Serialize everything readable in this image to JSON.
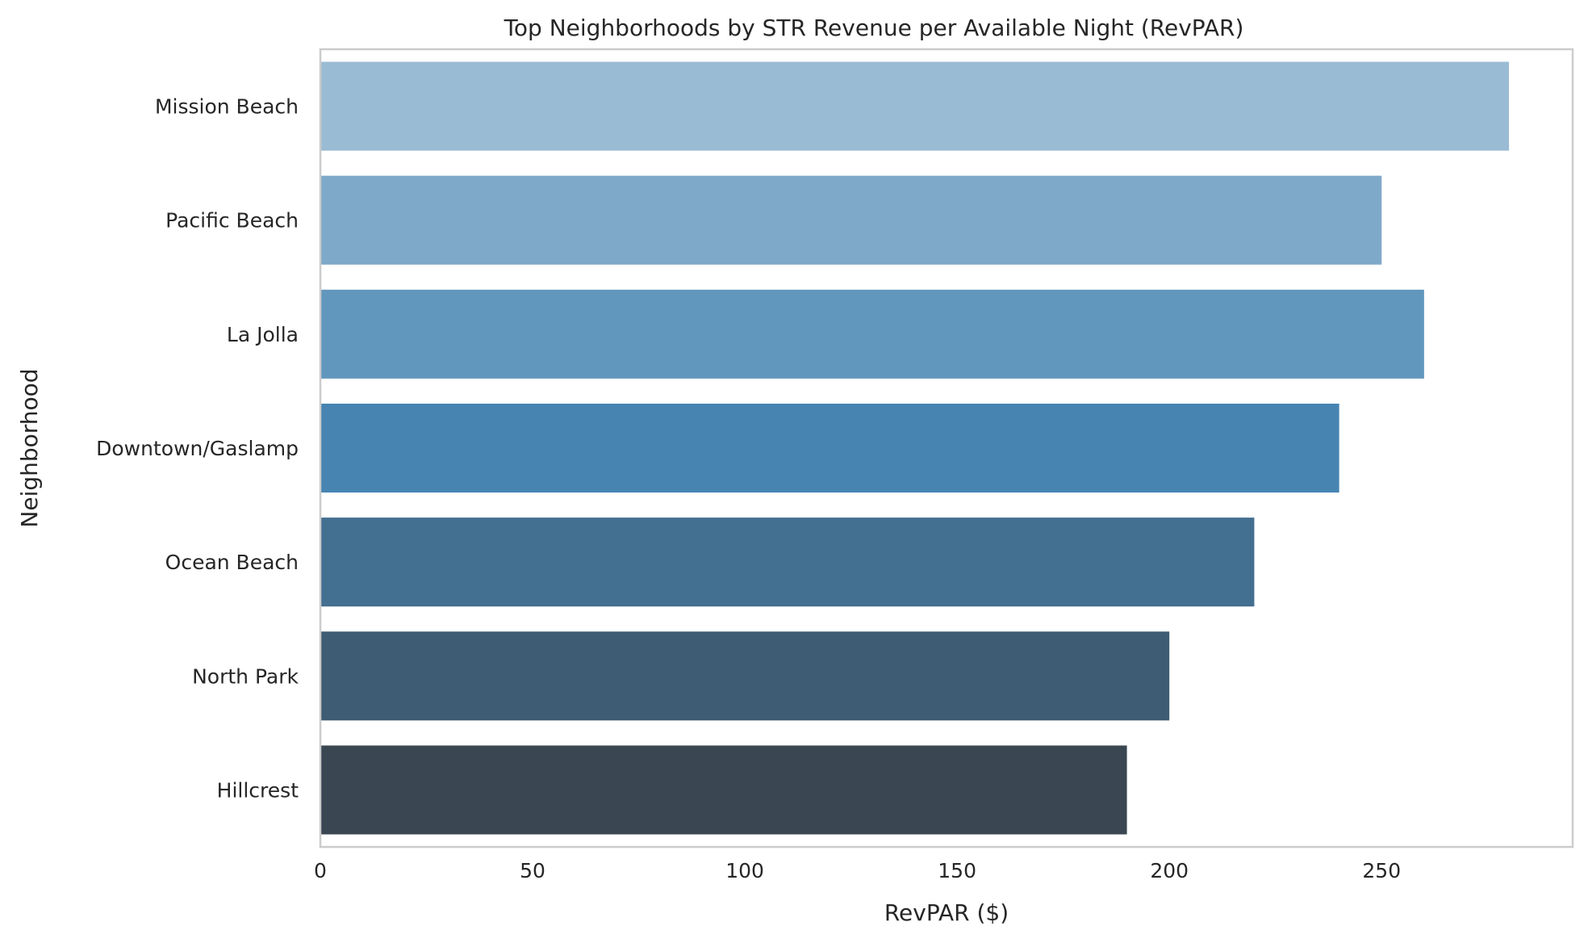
{
  "chart_data": {
    "type": "bar",
    "orientation": "horizontal",
    "title": "Top Neighborhoods by STR Revenue per Available Night (RevPAR)",
    "xlabel": "RevPAR ($)",
    "ylabel": "Neighborhood",
    "xlim": [
      0,
      295
    ],
    "xticks": [
      0,
      50,
      100,
      150,
      200,
      250
    ],
    "grid": false,
    "categories": [
      "Mission Beach",
      "Pacific Beach",
      "La Jolla",
      "Downtown/Gaslamp",
      "Ocean Beach",
      "North Park",
      "Hillcrest"
    ],
    "values": [
      280,
      250,
      260,
      240,
      220,
      200,
      190
    ],
    "colors": [
      "#9abbd4",
      "#7fa9c9",
      "#6297bd",
      "#4784b1",
      "#436f91",
      "#3e5c73",
      "#3a4753"
    ]
  }
}
